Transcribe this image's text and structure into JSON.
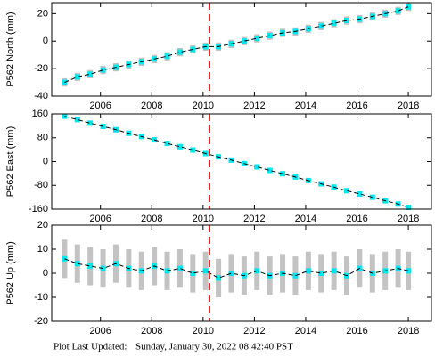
{
  "chart_data": [
    {
      "type": "scatter",
      "ylabel": "P562 North (mm)",
      "x": [
        2004.6,
        2005.1,
        2005.6,
        2006.1,
        2006.6,
        2007.1,
        2007.6,
        2008.1,
        2008.6,
        2009.1,
        2009.6,
        2010.1,
        2010.6,
        2011.1,
        2011.6,
        2012.1,
        2012.6,
        2013.1,
        2013.6,
        2014.1,
        2014.6,
        2015.1,
        2015.6,
        2016.1,
        2016.6,
        2017.1,
        2017.6,
        2018.0
      ],
      "values": [
        -30,
        -26,
        -24,
        -21,
        -19,
        -17,
        -15,
        -13,
        -11,
        -8,
        -6,
        -4,
        -4,
        -2,
        0,
        2,
        4,
        6,
        7,
        9,
        11,
        13,
        15,
        16,
        18,
        20,
        22,
        25
      ],
      "errors": [
        3,
        3,
        3,
        3,
        3,
        3,
        3,
        3,
        3,
        3,
        3,
        3,
        3,
        3,
        3,
        3,
        3,
        3,
        3,
        3,
        3,
        3,
        3,
        3,
        3,
        3,
        3,
        3
      ],
      "color": "#00e5ee",
      "error_color": "#aaaaaa",
      "line_color": "#000000",
      "xlim": [
        2004.1,
        2018.9
      ],
      "xticks": [
        2006,
        2008,
        2010,
        2012,
        2014,
        2016,
        2018
      ],
      "ylim": [
        -40,
        28
      ],
      "yticks": [
        20,
        0,
        -20,
        -40
      ],
      "vline": 2010.25,
      "vline_color": "#e8262b"
    },
    {
      "type": "scatter",
      "ylabel": "P562 East (mm)",
      "x": [
        2004.6,
        2005.1,
        2005.6,
        2006.1,
        2006.6,
        2007.1,
        2007.6,
        2008.1,
        2008.6,
        2009.1,
        2009.6,
        2010.1,
        2010.6,
        2011.1,
        2011.6,
        2012.1,
        2012.6,
        2013.1,
        2013.6,
        2014.1,
        2014.6,
        2015.1,
        2015.6,
        2016.1,
        2016.6,
        2017.1,
        2017.6,
        2018.0
      ],
      "values": [
        152,
        141,
        129,
        118,
        107,
        95,
        84,
        73,
        61,
        50,
        39,
        27,
        16,
        5,
        -7,
        -18,
        -30,
        -41,
        -52,
        -64,
        -75,
        -86,
        -98,
        -109,
        -120,
        -132,
        -143,
        -154
      ],
      "errors": [
        4,
        4,
        4,
        4,
        4,
        4,
        4,
        4,
        4,
        4,
        4,
        4,
        4,
        4,
        4,
        4,
        4,
        4,
        4,
        4,
        4,
        4,
        4,
        4,
        4,
        4,
        4,
        4
      ],
      "color": "#00e5ee",
      "error_color": "#aaaaaa",
      "line_color": "#000000",
      "xlim": [
        2004.1,
        2018.9
      ],
      "xticks": [
        2006,
        2008,
        2010,
        2012,
        2014,
        2016,
        2018
      ],
      "ylim": [
        -160,
        160
      ],
      "yticks": [
        160,
        80,
        0,
        -80,
        -160
      ],
      "vline": 2010.25,
      "vline_color": "#e8262b"
    },
    {
      "type": "scatter",
      "ylabel": "P562 Up (mm)",
      "x": [
        2004.6,
        2005.1,
        2005.6,
        2006.1,
        2006.6,
        2007.1,
        2007.6,
        2008.1,
        2008.6,
        2009.1,
        2009.6,
        2010.1,
        2010.6,
        2011.1,
        2011.6,
        2012.1,
        2012.6,
        2013.1,
        2013.6,
        2014.1,
        2014.6,
        2015.1,
        2015.6,
        2016.1,
        2016.6,
        2017.1,
        2017.6,
        2018.0
      ],
      "values": [
        6,
        4,
        3,
        2,
        4,
        2,
        1,
        3,
        1,
        2,
        0,
        1,
        -2,
        0,
        -1,
        1,
        -1,
        0,
        -1,
        1,
        0,
        1,
        -1,
        2,
        0,
        1,
        2,
        1
      ],
      "errors": [
        8,
        8,
        8,
        8,
        8,
        8,
        8,
        8,
        8,
        8,
        8,
        8,
        8,
        8,
        8,
        8,
        8,
        8,
        8,
        8,
        8,
        8,
        8,
        8,
        8,
        8,
        8,
        8
      ],
      "color": "#00e5ee",
      "error_color": "#aaaaaa",
      "line_color": "#000000",
      "xlim": [
        2004.1,
        2018.9
      ],
      "xticks": [
        2006,
        2008,
        2010,
        2012,
        2014,
        2016,
        2018
      ],
      "ylim": [
        -20,
        20
      ],
      "yticks": [
        20,
        10,
        0,
        -10,
        -20
      ],
      "vline": 2010.25,
      "vline_color": "#e8262b"
    }
  ],
  "footer": {
    "label": "Plot Last Updated:",
    "date": "Sunday, January 30, 2022 08:42:40 PST"
  }
}
